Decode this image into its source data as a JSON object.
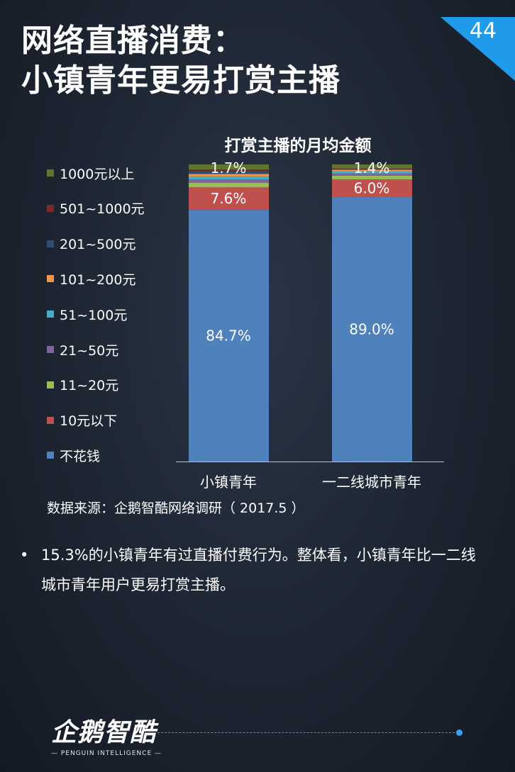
{
  "header": {
    "title_line1": "网络直播消费：",
    "title_line2": "小镇青年更易打赏主播",
    "page_number": "44"
  },
  "chart_data": {
    "type": "bar",
    "stacked": true,
    "title": "打赏主播的月均金额",
    "categories": [
      "小镇青年",
      "一二线城市青年"
    ],
    "ylim": [
      0,
      100
    ],
    "legend_position": "left",
    "series": [
      {
        "name": "不花钱",
        "color": "#4f81bd",
        "values": [
          84.7,
          89.0
        ],
        "labels": [
          "84.7%",
          "89.0%"
        ]
      },
      {
        "name": "10元以下",
        "color": "#c0504d",
        "values": [
          7.6,
          6.0
        ],
        "labels": [
          "7.6%",
          "6.0%"
        ]
      },
      {
        "name": "11~20元",
        "color": "#9bbb59",
        "values": [
          1.5,
          1.2
        ],
        "labels": [
          "",
          ""
        ]
      },
      {
        "name": "21~50元",
        "color": "#8064a2",
        "values": [
          1.2,
          0.8
        ],
        "labels": [
          "",
          ""
        ]
      },
      {
        "name": "51~100元",
        "color": "#4bacc6",
        "values": [
          1.0,
          0.7
        ],
        "labels": [
          "",
          ""
        ]
      },
      {
        "name": "101~200元",
        "color": "#f79646",
        "values": [
          0.8,
          0.5
        ],
        "labels": [
          "",
          ""
        ]
      },
      {
        "name": "201~500元",
        "color": "#2c4d75",
        "values": [
          0.8,
          0.2
        ],
        "labels": [
          "",
          ""
        ]
      },
      {
        "name": "501~1000元",
        "color": "#772c2a",
        "values": [
          0.7,
          0.2
        ],
        "labels": [
          "",
          ""
        ]
      },
      {
        "name": "1000元以上",
        "color": "#5f7530",
        "values": [
          1.7,
          1.4
        ],
        "labels": [
          "1.7%",
          "1.4%"
        ]
      }
    ]
  },
  "source_note": "数据来源：企鹅智酷网络调研（  2017.5 ）",
  "bullet": {
    "marker": "•",
    "text": "15.3%的小镇青年有过直播付费行为。整体看，小镇青年比一二线城市青年用户更易打赏主播。"
  },
  "footer": {
    "logo_text": "企鹅智酷",
    "logo_subtext": "— PENGUIN INTELLIGENCE —"
  }
}
